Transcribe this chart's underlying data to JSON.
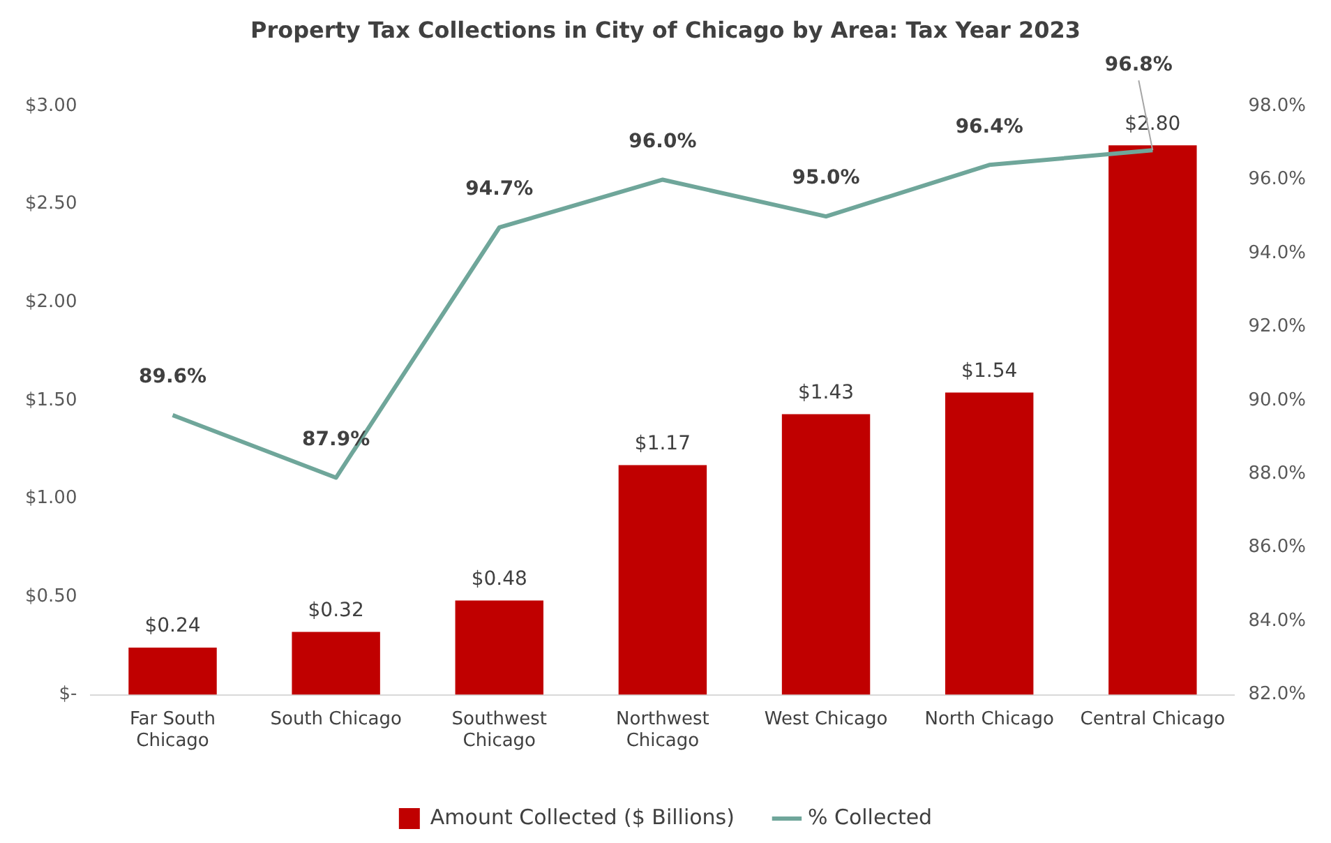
{
  "chart_data": {
    "type": "bar",
    "title": "Property Tax Collections in City of Chicago by Area: Tax Year 2023",
    "categories": [
      "Far South Chicago",
      "South Chicago",
      "Southwest Chicago",
      "Northwest Chicago",
      "West Chicago",
      "North Chicago",
      "Central Chicago"
    ],
    "series": [
      {
        "name": "Amount Collected ($ Billions)",
        "color": "#c00000",
        "values": [
          0.24,
          0.32,
          0.48,
          1.17,
          1.43,
          1.54,
          2.8
        ],
        "value_labels": [
          "$0.24",
          "$0.32",
          "$0.48",
          "$1.17",
          "$1.43",
          "$1.54",
          "$2.80"
        ]
      },
      {
        "name": "% Collected",
        "type": "line",
        "axis": "y2",
        "color": "#6fa69a",
        "values": [
          89.6,
          87.9,
          94.7,
          96.0,
          95.0,
          96.4,
          96.8
        ],
        "value_labels": [
          "89.6%",
          "87.9%",
          "94.7%",
          "96.0%",
          "95.0%",
          "96.4%",
          "96.8%"
        ]
      }
    ],
    "ylim": [
      0,
      3
    ],
    "yticks": [
      {
        "value": 0,
        "label": "$-"
      },
      {
        "value": 0.5,
        "label": "$0.50"
      },
      {
        "value": 1,
        "label": "$1.00"
      },
      {
        "value": 1.5,
        "label": "$1.50"
      },
      {
        "value": 2,
        "label": "$2.00"
      },
      {
        "value": 2.5,
        "label": "$2.50"
      },
      {
        "value": 3,
        "label": "$3.00"
      }
    ],
    "y2lim": [
      82,
      98
    ],
    "y2ticks": [
      {
        "value": 82,
        "label": "82.0%"
      },
      {
        "value": 84,
        "label": "84.0%"
      },
      {
        "value": 86,
        "label": "86.0%"
      },
      {
        "value": 88,
        "label": "88.0%"
      },
      {
        "value": 90,
        "label": "90.0%"
      },
      {
        "value": 92,
        "label": "92.0%"
      },
      {
        "value": 94,
        "label": "94.0%"
      },
      {
        "value": 96,
        "label": "96.0%"
      },
      {
        "value": 98,
        "label": "98.0%"
      }
    ],
    "grid": false,
    "legend": "bottom",
    "marker": "none",
    "line_style": "solid"
  }
}
